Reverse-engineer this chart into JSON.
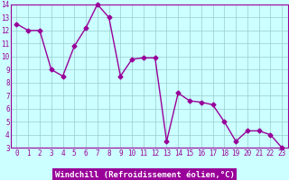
{
  "x": [
    0,
    1,
    2,
    3,
    4,
    5,
    6,
    7,
    8,
    9,
    10,
    11,
    12,
    13,
    14,
    15,
    16,
    17,
    18,
    19,
    20,
    21,
    22,
    23
  ],
  "y": [
    12.5,
    12.0,
    12.0,
    9.0,
    8.5,
    10.8,
    12.2,
    14.0,
    13.0,
    8.5,
    9.8,
    9.9,
    9.9,
    3.5,
    7.2,
    6.6,
    6.5,
    6.3,
    5.0,
    3.5,
    4.3,
    4.3,
    4.0,
    3.0
  ],
  "line_color": "#990099",
  "marker": "D",
  "markersize": 2.5,
  "linewidth": 1.0,
  "bg_color": "#ccffff",
  "grid_color": "#99cccc",
  "xlabel": "Windchill (Refroidissement éolien,°C)",
  "xlim": [
    -0.5,
    23.5
  ],
  "ylim": [
    3,
    14
  ],
  "yticks": [
    3,
    4,
    5,
    6,
    7,
    8,
    9,
    10,
    11,
    12,
    13,
    14
  ],
  "xticks": [
    0,
    1,
    2,
    3,
    4,
    5,
    6,
    7,
    8,
    9,
    10,
    11,
    12,
    13,
    14,
    15,
    16,
    17,
    18,
    19,
    20,
    21,
    22,
    23
  ],
  "xlabel_color": "#ffffff",
  "xlabel_bg": "#990099",
  "tick_label_color": "#990099",
  "spine_color": "#990099",
  "tick_fontsize": 5.5,
  "xlabel_fontsize": 6.5
}
